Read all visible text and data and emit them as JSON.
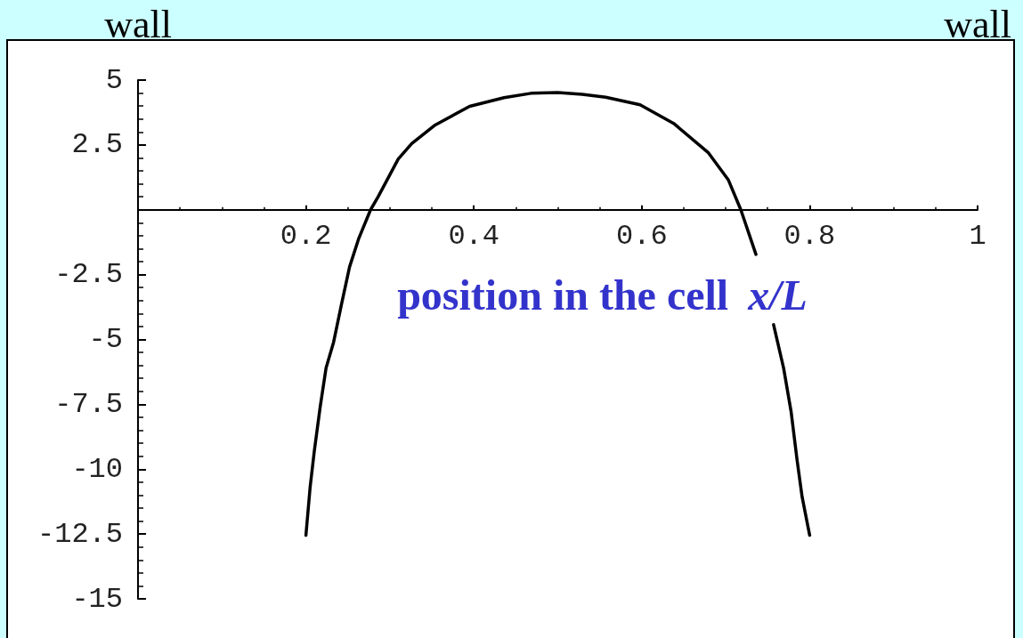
{
  "chart_data": {
    "type": "line",
    "xlabel": "position in the cell x/L",
    "annotations": [
      "wall",
      "wall"
    ],
    "x": [
      0.2,
      0.205,
      0.21,
      0.217,
      0.224,
      0.233,
      0.242,
      0.252,
      0.263,
      0.277,
      0.286,
      0.298,
      0.31,
      0.326,
      0.354,
      0.395,
      0.436,
      0.468,
      0.5,
      0.529,
      0.557,
      0.598,
      0.638,
      0.679,
      0.703,
      0.718,
      0.736,
      0.747,
      0.757,
      0.769,
      0.778,
      0.785,
      0.791,
      0.8
    ],
    "series": [
      {
        "color": "#000000",
        "values": [
          -12.55,
          -10.7,
          -9.3,
          -7.6,
          -6.1,
          -5.1,
          -3.7,
          -2.2,
          -1.1,
          0,
          0.5,
          1.23,
          1.96,
          2.55,
          3.27,
          3.99,
          4.32,
          4.49,
          4.52,
          4.45,
          4.34,
          4.05,
          3.33,
          2.21,
          1.16,
          0,
          -1.72,
          null,
          -4.43,
          -6.11,
          -7.81,
          -9.65,
          -11.07,
          -12.55
        ]
      }
    ],
    "xlim": [
      0,
      1
    ],
    "ylim": [
      -15,
      5
    ],
    "xticks": [
      0.2,
      0.4,
      0.6,
      0.8,
      1
    ],
    "yticks": [
      -15,
      -12.5,
      -10,
      -7.5,
      -5,
      -2.5,
      2.5,
      5
    ],
    "marker": "none"
  }
}
